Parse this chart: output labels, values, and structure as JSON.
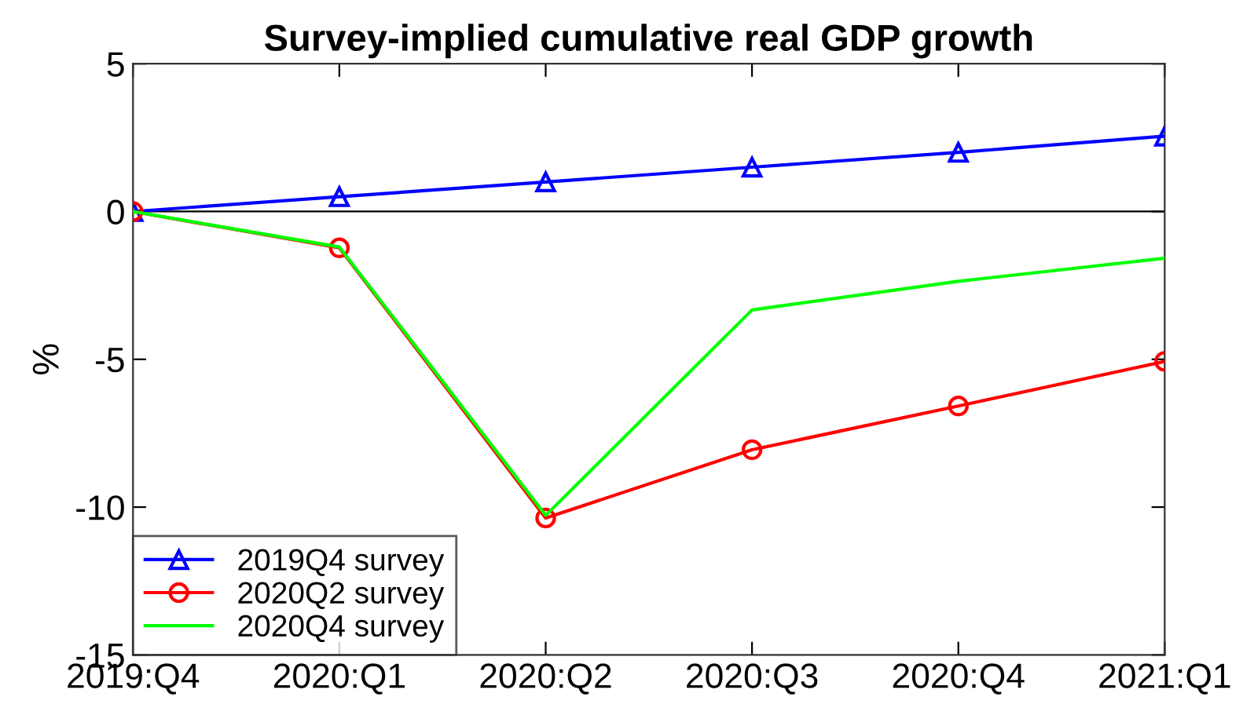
{
  "chart_data": {
    "type": "line",
    "title": "Survey-implied cumulative real GDP growth",
    "ylabel": "%",
    "categories": [
      "2019:Q4",
      "2020:Q1",
      "2020:Q2",
      "2020:Q3",
      "2020:Q4",
      "2021:Q1"
    ],
    "series": [
      {
        "name": "2019Q4 survey",
        "color": "#0000ff",
        "marker": "triangle",
        "values": [
          0,
          0.5,
          1.0,
          1.5,
          2.0,
          2.55
        ]
      },
      {
        "name": "2020Q2 survey",
        "color": "#ff0000",
        "marker": "circle",
        "values": [
          0,
          -1.23,
          -10.37,
          -8.06,
          -6.58,
          -5.07
        ]
      },
      {
        "name": "2020Q4 survey",
        "color": "#00ff00",
        "marker": "none",
        "values": [
          0,
          -1.2,
          -10.28,
          -3.33,
          -2.36,
          -1.58
        ]
      }
    ],
    "ylim": [
      -15,
      5
    ],
    "yticks": [
      -15,
      -10,
      -5,
      0,
      5
    ],
    "ref_lines": [
      {
        "axis": "y",
        "value": 0,
        "color": "#000000"
      }
    ],
    "legend": "bottom left",
    "grid": false
  }
}
